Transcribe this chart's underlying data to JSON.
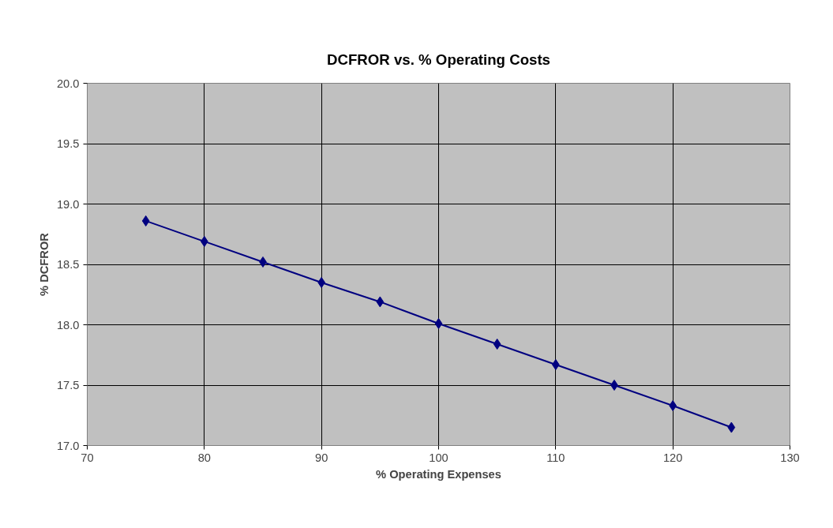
{
  "chart_data": {
    "type": "line",
    "title": "DCFROR vs. % Operating Costs",
    "xlabel": "% Operating Expenses",
    "ylabel": "% DCFROR",
    "x": [
      75,
      80,
      85,
      90,
      95,
      100,
      105,
      110,
      115,
      120,
      125
    ],
    "series": [
      {
        "color": "#000080",
        "values": [
          18.86,
          18.69,
          18.52,
          18.35,
          18.19,
          18.01,
          17.84,
          17.67,
          17.5,
          17.33,
          17.15
        ]
      }
    ],
    "xlim": [
      70,
      130
    ],
    "xticks": [
      70,
      80,
      90,
      100,
      110,
      120,
      130
    ],
    "ylim": [
      17.0,
      20.0
    ],
    "yticks": [
      {
        "value": 17.0,
        "label": "17.0"
      },
      {
        "value": 17.5,
        "label": "17.5"
      },
      {
        "value": 18.0,
        "label": "18.0"
      },
      {
        "value": 18.5,
        "label": "18.5"
      },
      {
        "value": 19.0,
        "label": "19.0"
      },
      {
        "value": 19.5,
        "label": "19.5"
      },
      {
        "value": 20.0,
        "label": "20.0"
      }
    ],
    "grid": true,
    "marker": "diamond",
    "line_style": "solid"
  }
}
